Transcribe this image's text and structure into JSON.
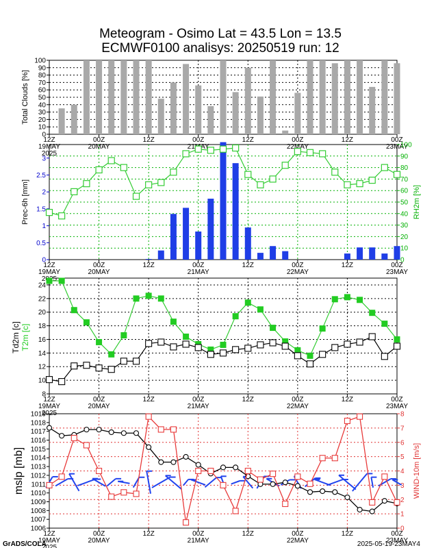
{
  "title_line1": "Meteogram - Osimo Lat = 43.5 Lon = 13.5",
  "title_line2": "ECMWF0100 analisys: 20250519 run: 12",
  "footer_left": "GrADS/COLA",
  "footer_right": "2025-05-19-23MAY4",
  "time_axis": {
    "ticks": [
      {
        "label": "12Z",
        "sub": "19MAY",
        "sub2": "2025"
      },
      {
        "label": "00Z",
        "sub": "20MAY",
        "sub2": ""
      },
      {
        "label": "12Z",
        "sub": "",
        "sub2": ""
      },
      {
        "label": "00Z",
        "sub": "21MAY",
        "sub2": ""
      },
      {
        "label": "12Z",
        "sub": "",
        "sub2": ""
      },
      {
        "label": "00Z",
        "sub": "22MAY",
        "sub2": ""
      },
      {
        "label": "12Z",
        "sub": "",
        "sub2": ""
      },
      {
        "label": "00Z",
        "sub": "23MAY",
        "sub2": ""
      }
    ]
  },
  "chart_data": [
    {
      "type": "bar",
      "ylabel": "Total Clouds [%]",
      "ylim": [
        0,
        100
      ],
      "yticks": [
        0,
        10,
        20,
        30,
        40,
        50,
        60,
        70,
        80,
        90,
        100
      ],
      "grid": true,
      "x_hours": [
        3,
        6,
        9,
        12,
        15,
        18,
        21,
        24,
        27,
        30,
        33,
        36,
        39,
        42,
        45,
        48,
        51,
        54,
        57,
        60,
        63,
        66,
        69,
        72,
        75,
        78,
        81,
        84
      ],
      "values": [
        35,
        40,
        100,
        100,
        100,
        100,
        100,
        100,
        48,
        70,
        95,
        66,
        38,
        100,
        57,
        90,
        51,
        100,
        5,
        56,
        100,
        100,
        96,
        100,
        100,
        64,
        100,
        96
      ]
    },
    {
      "type": "bar+line",
      "ylabel": "Prec-6h [mm]",
      "ylabel_right": "RH2m [%]",
      "ylim": [
        0,
        3.4
      ],
      "yticks": [
        0,
        0.5,
        1,
        1.5,
        2,
        2.5,
        3
      ],
      "ylim_right": [
        0,
        100
      ],
      "yticks_right": [
        0,
        10,
        20,
        30,
        40,
        50,
        60,
        70,
        80,
        90,
        100
      ],
      "grid": true,
      "bars": {
        "name": "",
        "x_hours": [
          24,
          27,
          30,
          33,
          36,
          39,
          42,
          45,
          48,
          51,
          54,
          57,
          72,
          75,
          78,
          81,
          84
        ],
        "values": [
          0.02,
          0.27,
          1.35,
          1.53,
          0.83,
          1.8,
          3.47,
          2.85,
          0.95,
          0.2,
          0.4,
          0.25,
          0.18,
          0.36,
          0.36,
          0.18,
          0.4
        ]
      },
      "series": [
        {
          "name": "",
          "x_hours": [
            0,
            3,
            6,
            9,
            12,
            15,
            18,
            21,
            24,
            27,
            30,
            33,
            36,
            39,
            42,
            45,
            48,
            51,
            54,
            57,
            60,
            63,
            66,
            69,
            72,
            75,
            78,
            81,
            84
          ],
          "values": [
            41,
            38,
            59,
            66,
            78,
            86,
            80,
            55,
            65,
            67,
            76,
            92,
            96,
            95,
            96,
            97,
            74,
            65,
            70,
            82,
            94,
            93,
            92,
            76,
            65,
            66,
            69,
            80,
            74
          ]
        }
      ]
    },
    {
      "type": "line",
      "ylabel": "Td2m [c]",
      "ylabel2": "T2m [c]",
      "ylim": [
        8,
        25
      ],
      "yticks": [
        8,
        10,
        12,
        14,
        16,
        18,
        20,
        22,
        24
      ],
      "grid": true,
      "series": [
        {
          "name": "",
          "x_hours": [
            0,
            3,
            6,
            9,
            12,
            15,
            18,
            21,
            24,
            27,
            30,
            33,
            36,
            39,
            42,
            45,
            48,
            51,
            54,
            57,
            60,
            63,
            66,
            69,
            72,
            75,
            78,
            81,
            84
          ],
          "values": [
            24.6,
            24.6,
            20.3,
            18.5,
            15.6,
            13.8,
            16.6,
            22.0,
            22.4,
            22.0,
            18.6,
            16.4,
            15.3,
            14.5,
            15.2,
            19.4,
            21.4,
            20.4,
            17.7,
            15.7,
            14.4,
            13.6,
            17.6,
            21.9,
            22.2,
            21.8,
            19.9,
            18.3,
            16.0
          ]
        },
        {
          "name": "",
          "x_hours": [
            0,
            3,
            6,
            9,
            12,
            15,
            18,
            21,
            24,
            27,
            30,
            33,
            36,
            39,
            42,
            45,
            48,
            51,
            54,
            57,
            60,
            63,
            66,
            69,
            72,
            75,
            78,
            81,
            84
          ],
          "values": [
            10.1,
            9.8,
            12.1,
            12.2,
            11.8,
            11.6,
            12.8,
            12.8,
            15.4,
            15.6,
            14.9,
            15.3,
            14.8,
            13.8,
            14.0,
            14.5,
            14.7,
            15.2,
            15.5,
            15.0,
            13.6,
            12.4,
            13.8,
            14.8,
            15.3,
            15.6,
            16.4,
            13.5,
            15.0
          ]
        }
      ]
    },
    {
      "type": "line+wind",
      "ylabel": "mslp [mb]",
      "ylabel_right": "WIND-10m [m/s]",
      "ylim": [
        1006,
        1019
      ],
      "yticks": [
        1006,
        1007,
        1008,
        1009,
        1010,
        1011,
        1012,
        1013,
        1014,
        1015,
        1016,
        1017,
        1018,
        1019
      ],
      "ylim_right": [
        0,
        8
      ],
      "yticks_right": [
        0,
        1,
        2,
        3,
        4,
        5,
        6,
        7,
        8
      ],
      "grid": true,
      "series": [
        {
          "name": "",
          "x_hours": [
            0,
            3,
            6,
            9,
            12,
            15,
            18,
            21,
            24,
            27,
            30,
            33,
            36,
            39,
            42,
            45,
            48,
            51,
            54,
            57,
            60,
            63,
            66,
            69,
            72,
            75,
            78,
            81,
            84
          ],
          "values": [
            1017.4,
            1016.5,
            1016.6,
            1017.2,
            1017.2,
            1016.9,
            1016.8,
            1016.8,
            1015.2,
            1013.5,
            1013.5,
            1014.1,
            1013.2,
            1012.2,
            1012.9,
            1012.9,
            1011.9,
            1011.0,
            1011.0,
            1011.2,
            1010.8,
            1010.1,
            1010.2,
            1010.1,
            1009.5,
            1008.1,
            1007.9,
            1009.1,
            1008.8
          ]
        },
        {
          "name": "",
          "x_hours": [
            0,
            3,
            6,
            9,
            12,
            15,
            18,
            21,
            24,
            27,
            30,
            33,
            36,
            39,
            42,
            45,
            48,
            51,
            54,
            57,
            60,
            63,
            66,
            69,
            72,
            75,
            78,
            81,
            84
          ],
          "values": [
            3.0,
            3.6,
            6.3,
            5.8,
            4.0,
            2.2,
            2.5,
            2.4,
            7.8,
            6.9,
            6.9,
            0.4,
            4.0,
            4.0,
            3.0,
            1.2,
            4.0,
            3.4,
            3.8,
            1.7,
            3.6,
            3.1,
            4.9,
            4.9,
            7.5,
            7.8,
            1.8,
            3.6,
            1.8
          ]
        }
      ]
    }
  ]
}
